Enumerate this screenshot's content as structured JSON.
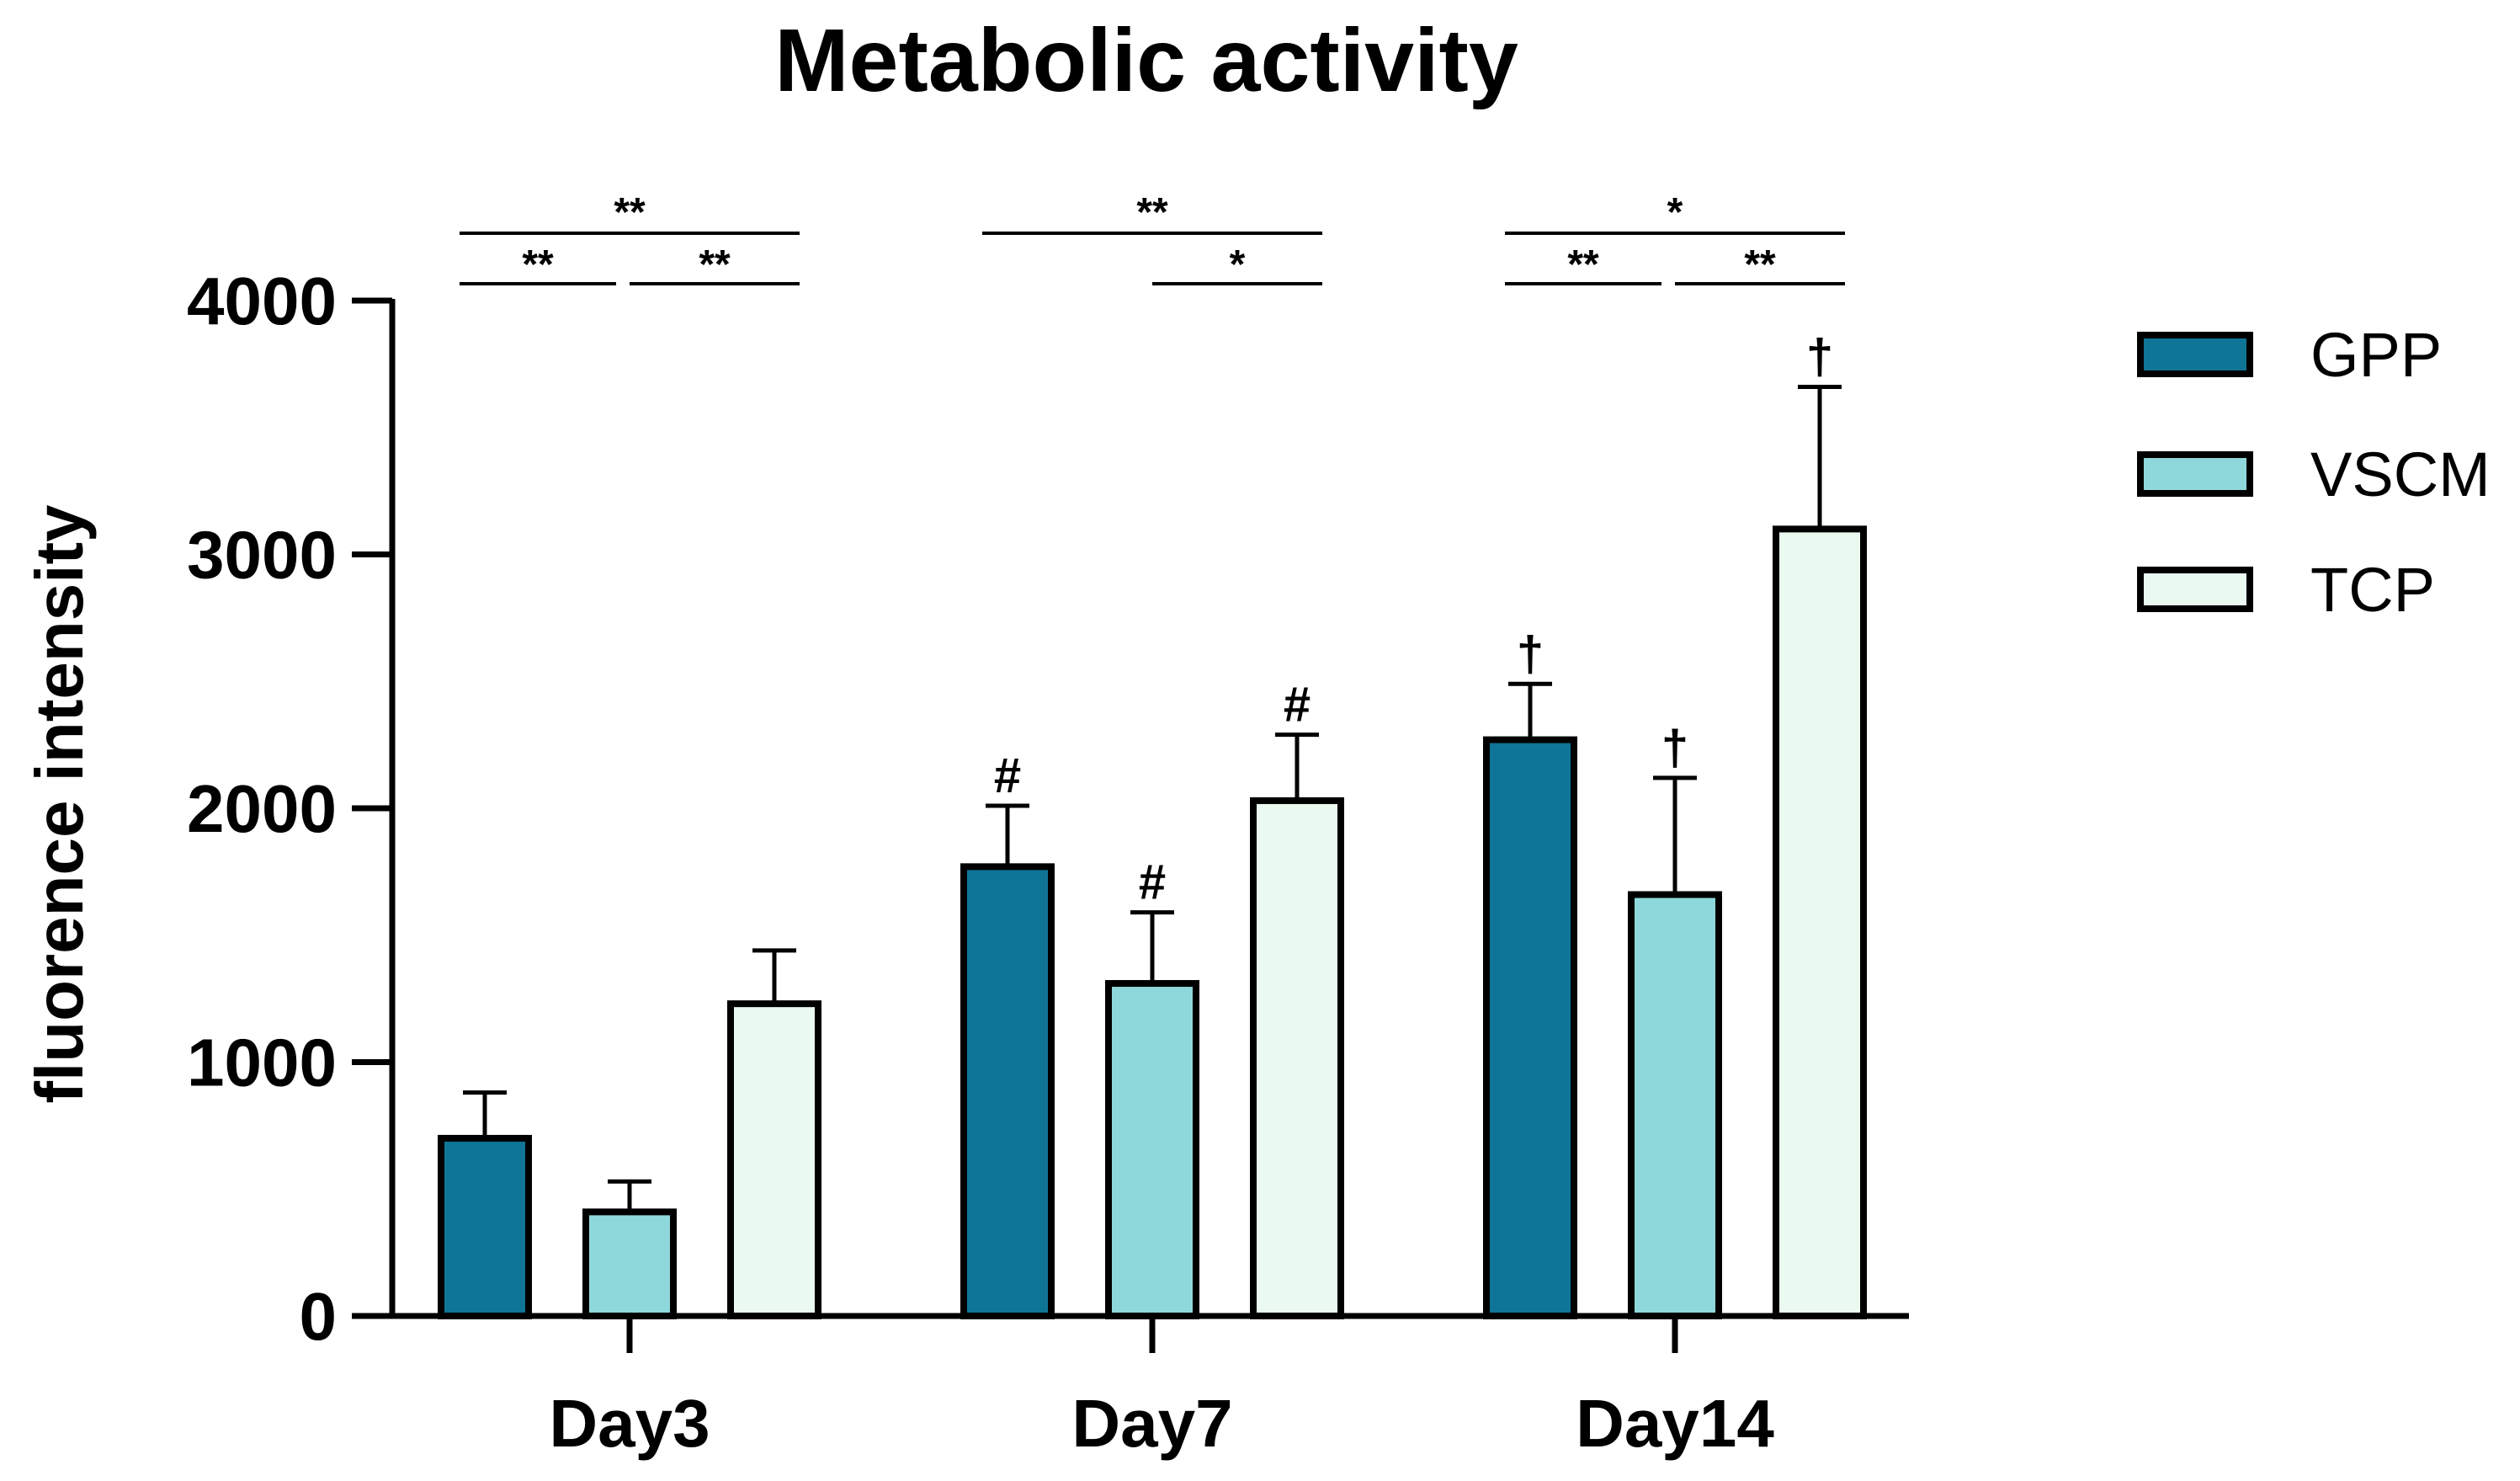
{
  "chart_data": {
    "type": "bar",
    "title": "Metabolic activity",
    "xlabel": "",
    "ylabel": "fluorence intensity",
    "ylim": [
      0,
      4000
    ],
    "yticks": [
      0,
      1000,
      2000,
      3000,
      4000
    ],
    "ytick_labels": [
      "0",
      "1000",
      "2000",
      "3000",
      "4000"
    ],
    "grid": false,
    "legend_position": "right",
    "categories": [
      "Day3",
      "Day7",
      "Day14"
    ],
    "series": [
      {
        "name": "GPP",
        "color": "#0f7596",
        "values": [
          700,
          1770,
          2270
        ],
        "errors": [
          180,
          240,
          220
        ],
        "markers": [
          "",
          "#",
          "†"
        ]
      },
      {
        "name": "VSCM",
        "color": "#8ed8db",
        "values": [
          410,
          1310,
          1660
        ],
        "errors": [
          120,
          280,
          460
        ],
        "markers": [
          "",
          "#",
          "†"
        ]
      },
      {
        "name": "TCP",
        "color": "#eafaf0",
        "values": [
          1230,
          2030,
          3100
        ],
        "errors": [
          210,
          260,
          560
        ],
        "markers": [
          "",
          "#",
          "†"
        ]
      }
    ],
    "significance": [
      {
        "category": 0,
        "from": 0,
        "to": 2,
        "label": "**",
        "level": 2
      },
      {
        "category": 0,
        "from": 0,
        "to": 1,
        "label": "**",
        "level": 1
      },
      {
        "category": 0,
        "from": 1,
        "to": 2,
        "label": "**",
        "level": 1
      },
      {
        "category": 1,
        "from": 0,
        "to": 2,
        "label": "**",
        "level": 2
      },
      {
        "category": 1,
        "from": 1,
        "to": 2,
        "label": "*",
        "level": 1
      },
      {
        "category": 2,
        "from": 0,
        "to": 2,
        "label": "*",
        "level": 2
      },
      {
        "category": 2,
        "from": 0,
        "to": 1,
        "label": "**",
        "level": 1
      },
      {
        "category": 2,
        "from": 1,
        "to": 2,
        "label": "**",
        "level": 1
      }
    ]
  }
}
